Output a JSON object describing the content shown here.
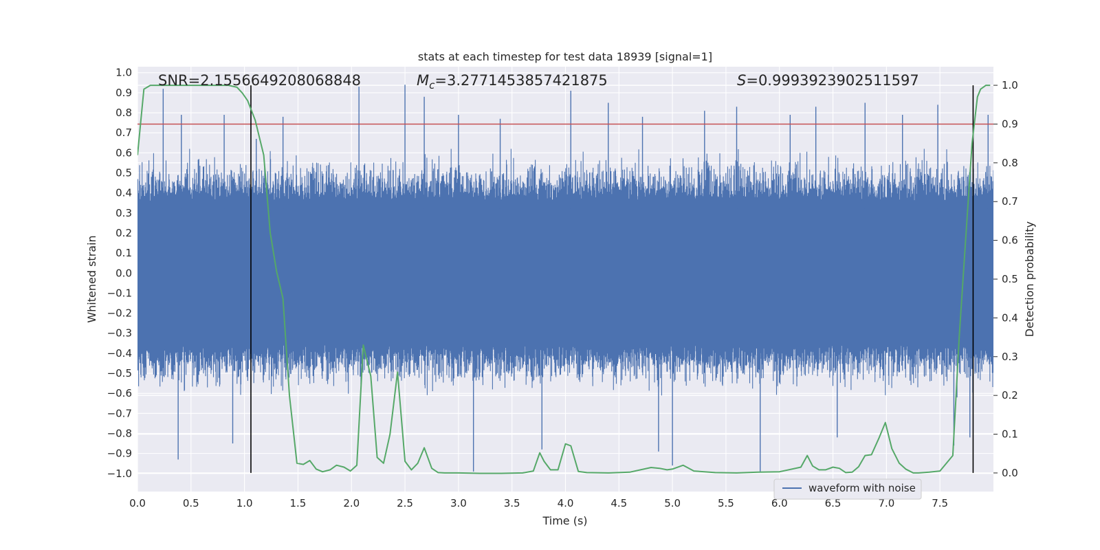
{
  "chart_data": {
    "type": "line",
    "title": "stats at each timestep for test data 18939 [signal=1]",
    "xlabel": "Time (s)",
    "ylabel": "Whitened strain",
    "y2label": "Detection probability",
    "xlim": [
      0.0,
      8.0
    ],
    "ylim": [
      -1.09,
      1.03
    ],
    "y2lim": [
      -0.048,
      1.048
    ],
    "xticks": [
      "0.0",
      "0.5",
      "1.0",
      "1.5",
      "2.0",
      "2.5",
      "3.0",
      "3.5",
      "4.0",
      "4.5",
      "5.0",
      "5.5",
      "6.0",
      "6.5",
      "7.0",
      "7.5"
    ],
    "yticks": [
      "1.0",
      "0.9",
      "0.8",
      "0.7",
      "0.6",
      "0.5",
      "0.4",
      "0.3",
      "0.2",
      "0.1",
      "0.0",
      "−0.1",
      "−0.2",
      "−0.3",
      "−0.4",
      "−0.5",
      "−0.6",
      "−0.7",
      "−0.8",
      "−0.9",
      "−1.0"
    ],
    "y2ticks": [
      "1.0",
      "0.9",
      "0.8",
      "0.7",
      "0.6",
      "0.5",
      "0.4",
      "0.3",
      "0.2",
      "0.1",
      "0.0"
    ],
    "annotations": {
      "snr": "SNR=2.1556649208068848",
      "mc_symbol": "M",
      "mc_sub": "c",
      "mc_value": "=3.2771453857421875",
      "s_symbol": "S",
      "s_value": "=0.9993923902511597"
    },
    "threshold_y2": 0.9,
    "vertical_lines_x": [
      1.06,
      7.81
    ],
    "series": [
      {
        "name": "waveform with noise",
        "color": "#4c72b0",
        "axis": "left",
        "spike_peaks": [
          {
            "x": 0.24,
            "v": 0.92
          },
          {
            "x": 0.38,
            "v": -0.93
          },
          {
            "x": 0.41,
            "v": 0.79
          },
          {
            "x": 0.81,
            "v": 0.79
          },
          {
            "x": 0.89,
            "v": -0.85
          },
          {
            "x": 1.11,
            "v": 0.67
          },
          {
            "x": 1.36,
            "v": 0.78
          },
          {
            "x": 2.07,
            "v": 0.93
          },
          {
            "x": 2.5,
            "v": 0.94
          },
          {
            "x": 2.68,
            "v": 0.88
          },
          {
            "x": 3.0,
            "v": 0.79
          },
          {
            "x": 3.14,
            "v": -0.99
          },
          {
            "x": 3.39,
            "v": 0.77
          },
          {
            "x": 3.78,
            "v": -0.88
          },
          {
            "x": 4.05,
            "v": 0.91
          },
          {
            "x": 4.4,
            "v": 0.85
          },
          {
            "x": 4.72,
            "v": 0.78
          },
          {
            "x": 4.87,
            "v": -0.89
          },
          {
            "x": 5.0,
            "v": -0.96
          },
          {
            "x": 5.3,
            "v": 0.81
          },
          {
            "x": 5.6,
            "v": 0.83
          },
          {
            "x": 5.82,
            "v": -0.99
          },
          {
            "x": 6.1,
            "v": 0.79
          },
          {
            "x": 6.34,
            "v": 0.83
          },
          {
            "x": 6.54,
            "v": -0.82
          },
          {
            "x": 6.8,
            "v": 0.85
          },
          {
            "x": 7.15,
            "v": 0.79
          },
          {
            "x": 7.48,
            "v": 0.84
          },
          {
            "x": 7.63,
            "v": -0.86
          },
          {
            "x": 7.78,
            "v": -0.82
          },
          {
            "x": 7.95,
            "v": 0.79
          }
        ]
      },
      {
        "name": "detection probability",
        "color": "#55a868",
        "axis": "right",
        "x": [
          0.0,
          0.06,
          0.12,
          0.2,
          0.3,
          0.5,
          0.7,
          0.85,
          0.93,
          0.98,
          1.03,
          1.1,
          1.18,
          1.24,
          1.3,
          1.36,
          1.42,
          1.49,
          1.55,
          1.61,
          1.67,
          1.73,
          1.8,
          1.86,
          1.93,
          1.99,
          2.05,
          2.11,
          2.18,
          2.24,
          2.3,
          2.36,
          2.43,
          2.5,
          2.56,
          2.62,
          2.68,
          2.75,
          2.81,
          2.87,
          3.0,
          3.2,
          3.4,
          3.6,
          3.7,
          3.76,
          3.8,
          3.86,
          3.93,
          4.0,
          4.05,
          4.12,
          4.2,
          4.4,
          4.6,
          4.8,
          4.88,
          4.95,
          5.0,
          5.1,
          5.2,
          5.4,
          5.6,
          5.8,
          6.0,
          6.2,
          6.26,
          6.31,
          6.37,
          6.43,
          6.5,
          6.56,
          6.62,
          6.68,
          6.74,
          6.8,
          6.86,
          6.93,
          6.99,
          7.05,
          7.12,
          7.18,
          7.25,
          7.3,
          7.4,
          7.5,
          7.62,
          7.68,
          7.74,
          7.8,
          7.85,
          7.88,
          7.93,
          7.97
        ],
        "values": [
          0.82,
          0.99,
          1.0,
          1.0,
          1.0,
          1.0,
          1.0,
          1.0,
          0.995,
          0.98,
          0.96,
          0.91,
          0.82,
          0.62,
          0.52,
          0.45,
          0.2,
          0.025,
          0.022,
          0.032,
          0.01,
          0.003,
          0.008,
          0.02,
          0.015,
          0.005,
          0.02,
          0.33,
          0.25,
          0.04,
          0.025,
          0.1,
          0.26,
          0.03,
          0.008,
          0.025,
          0.065,
          0.012,
          0.001,
          0.0,
          0.0,
          -0.001,
          -0.001,
          0.0,
          0.005,
          0.052,
          0.03,
          0.008,
          0.008,
          0.075,
          0.07,
          0.004,
          0.001,
          0.0,
          0.002,
          0.014,
          0.012,
          0.008,
          0.01,
          0.02,
          0.005,
          0.001,
          0.0,
          0.002,
          0.003,
          0.015,
          0.045,
          0.018,
          0.008,
          0.008,
          0.015,
          0.012,
          0.001,
          0.002,
          0.016,
          0.045,
          0.047,
          0.09,
          0.13,
          0.063,
          0.025,
          0.01,
          0.0,
          0.0,
          0.002,
          0.005,
          0.045,
          0.35,
          0.6,
          0.85,
          0.97,
          0.99,
          1.0,
          1.0
        ]
      }
    ],
    "legend": {
      "entries": [
        "waveform with noise"
      ],
      "location": "lower right"
    },
    "grid": true,
    "facecolor": "#eaeaf2",
    "threshold_color": "#c44e52",
    "vline_color": "#000000"
  }
}
